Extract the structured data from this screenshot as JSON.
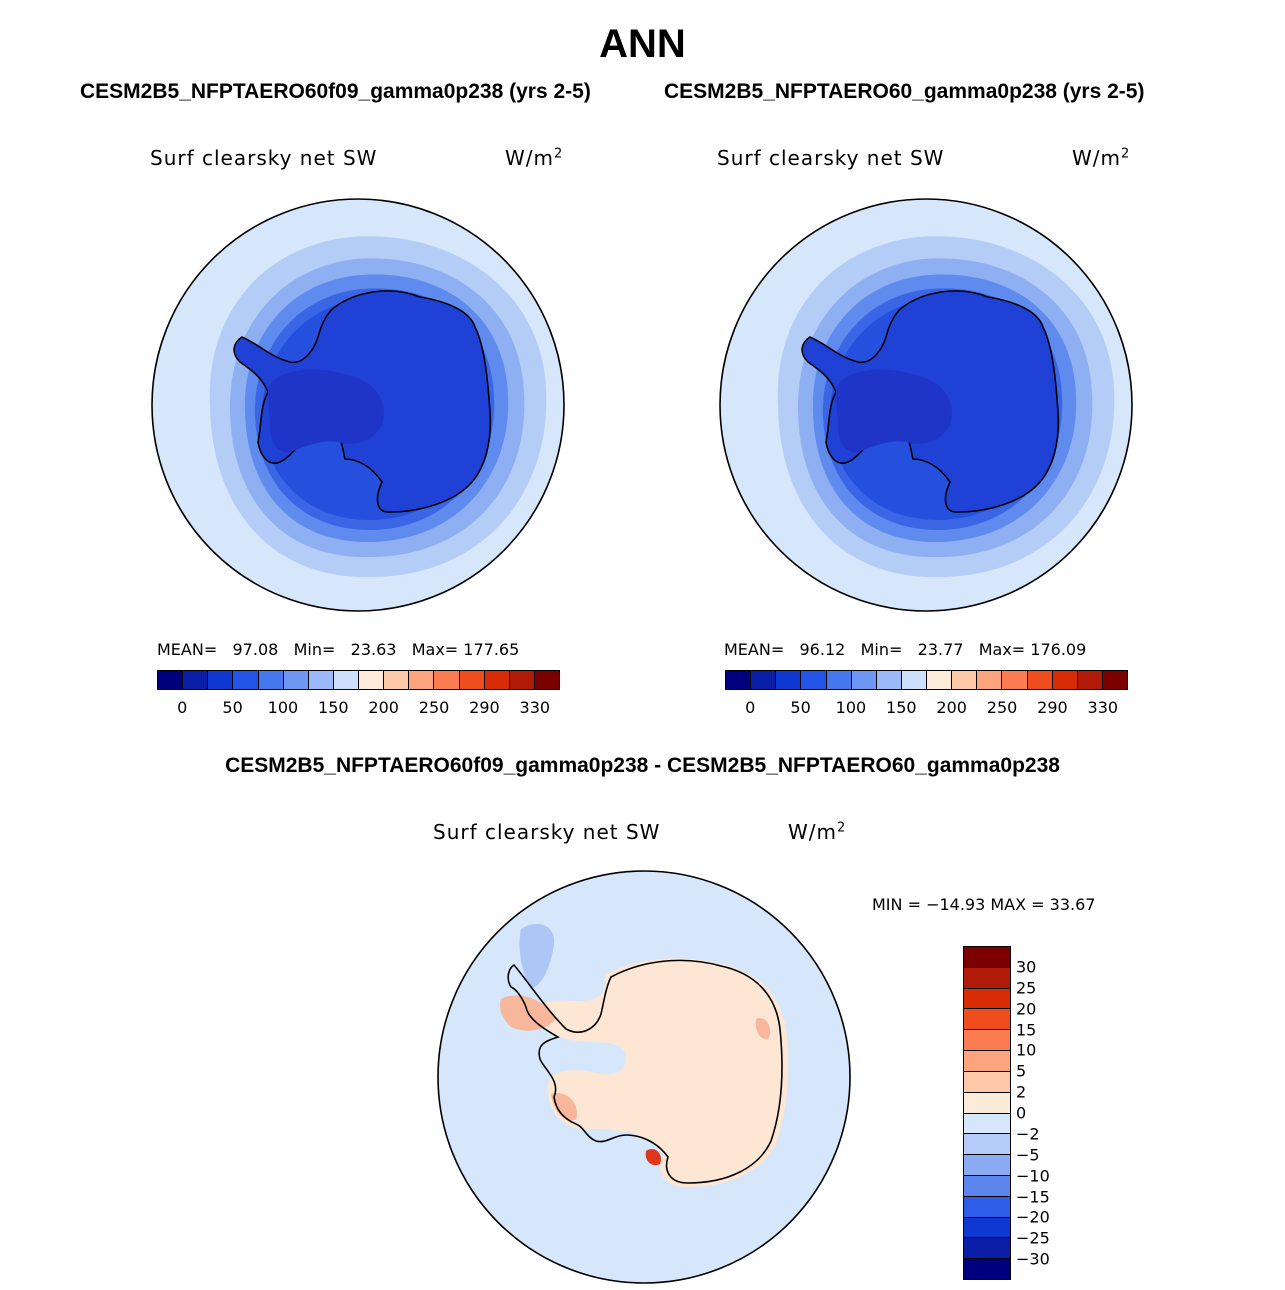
{
  "title": "ANN",
  "panels": {
    "left": {
      "case_title": "CESM2B5_NFPTAERO60f09_gamma0p238 (yrs 2-5)",
      "variable": "Surf clearsky net SW",
      "units_base": "W/m",
      "units_exp": "2",
      "stats": {
        "mean_label": "MEAN=",
        "mean": "97.08",
        "min_label": "Min=",
        "min": "23.63",
        "max_label": "Max=",
        "max": "177.65"
      }
    },
    "right": {
      "case_title": "CESM2B5_NFPTAERO60_gamma0p238 (yrs 2-5)",
      "variable": "Surf clearsky net SW",
      "units_base": "W/m",
      "units_exp": "2",
      "stats": {
        "mean_label": "MEAN=",
        "mean": "96.12",
        "min_label": "Min=",
        "min": "23.77",
        "max_label": "Max=",
        "max": "176.09"
      }
    },
    "diff": {
      "case_title": "CESM2B5_NFPTAERO60f09_gamma0p238 - CESM2B5_NFPTAERO60_gamma0p238",
      "variable": "Surf clearsky net SW",
      "units_base": "W/m",
      "units_exp": "2",
      "minmax": "MIN = −14.93 MAX =   33.67"
    }
  },
  "colorbar_main": {
    "tick_labels": [
      "0",
      "50",
      "100",
      "150",
      "200",
      "250",
      "290",
      "330"
    ],
    "colors": [
      "#00007f",
      "#0a1ea8",
      "#0f37d2",
      "#2355e8",
      "#4678f0",
      "#6e96f5",
      "#9bb8f8",
      "#cde0fb",
      "#fdebd9",
      "#fcc8a8",
      "#fca47e",
      "#fb7c50",
      "#f04d1e",
      "#d82c06",
      "#b01a06",
      "#7d0000"
    ]
  },
  "colorbar_diff": {
    "labels": [
      "30",
      "25",
      "20",
      "15",
      "10",
      "5",
      "2",
      "0",
      "−2",
      "−5",
      "−10",
      "−15",
      "−20",
      "−25",
      "−30"
    ],
    "colors": [
      "#7d0000",
      "#b01a06",
      "#d82c06",
      "#f04d1e",
      "#fb7c50",
      "#fca47e",
      "#fcc8a8",
      "#fdebd9",
      "#d6e6fb",
      "#b6ccf8",
      "#8aaaf3",
      "#5c86ee",
      "#2e5ee8",
      "#0f37d2",
      "#0a1ea8",
      "#00007f"
    ]
  },
  "map_colors": {
    "outer": "#d6e6fb",
    "ring1": "#b4cdf7",
    "ring2": "#8eb0f2",
    "ring3": "#5f8bee",
    "ring4": "#3a66e6",
    "ring5": "#2550de",
    "continent": "#2041d6",
    "interior": "#1e35c8",
    "diff_bg": "#d6e6fb",
    "diff_land": "#fde7d4",
    "diff_warm": "#f8b79a",
    "diff_hot": "#e0361c",
    "diff_cool": "#aec6f6"
  }
}
